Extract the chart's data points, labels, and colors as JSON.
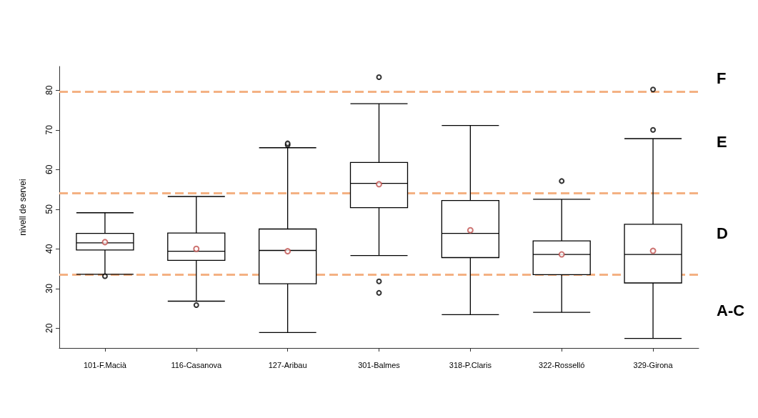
{
  "chart_data": {
    "type": "box",
    "ylabel": "nivell de servei",
    "categories": [
      "101-F.Macià",
      "116-Casanova",
      "127-Aribau",
      "301-Balmes",
      "318-P.Claris",
      "322-Rosselló",
      "329-Girona"
    ],
    "boxes": [
      {
        "low": 33.6,
        "q1": 39.7,
        "median": 41.5,
        "q3": 43.9,
        "high": 49.1,
        "mean": 41.7,
        "outliers": [
          33.1
        ]
      },
      {
        "low": 26.8,
        "q1": 37.1,
        "median": 39.4,
        "q3": 44.0,
        "high": 53.2,
        "mean": 40.0,
        "outliers": [
          25.8
        ]
      },
      {
        "low": 18.9,
        "q1": 31.2,
        "median": 39.6,
        "q3": 45.0,
        "high": 65.5,
        "mean": 39.4,
        "outliers": [
          66.2,
          66.6
        ]
      },
      {
        "low": 38.3,
        "q1": 50.4,
        "median": 56.5,
        "q3": 61.8,
        "high": 76.6,
        "mean": 56.3,
        "outliers": [
          83.3,
          31.8,
          28.9
        ]
      },
      {
        "low": 23.4,
        "q1": 37.8,
        "median": 43.9,
        "q3": 52.2,
        "high": 71.1,
        "mean": 44.7
      },
      {
        "low": 24.0,
        "q1": 33.5,
        "median": 38.6,
        "q3": 42.0,
        "high": 52.5,
        "mean": 38.6,
        "outliers": [
          57.1
        ]
      },
      {
        "low": 17.4,
        "q1": 31.4,
        "median": 38.6,
        "q3": 46.2,
        "high": 67.8,
        "mean": 39.5,
        "outliers": [
          70.0,
          80.2
        ]
      }
    ],
    "ylim": [
      15,
      86
    ],
    "yticks": [
      20,
      30,
      40,
      50,
      60,
      70,
      80
    ],
    "ref_lines": [
      {
        "axis": "y",
        "value": 79.7,
        "color": "#f4b183",
        "line_style": "dashed"
      },
      {
        "axis": "y",
        "value": 54.0,
        "color": "#f4b183",
        "line_style": "dashed"
      },
      {
        "axis": "y",
        "value": 33.5,
        "color": "#f4b183",
        "line_style": "dashed"
      }
    ],
    "annotations": [
      "F",
      "E",
      "D",
      "A-C"
    ],
    "grid": false
  }
}
